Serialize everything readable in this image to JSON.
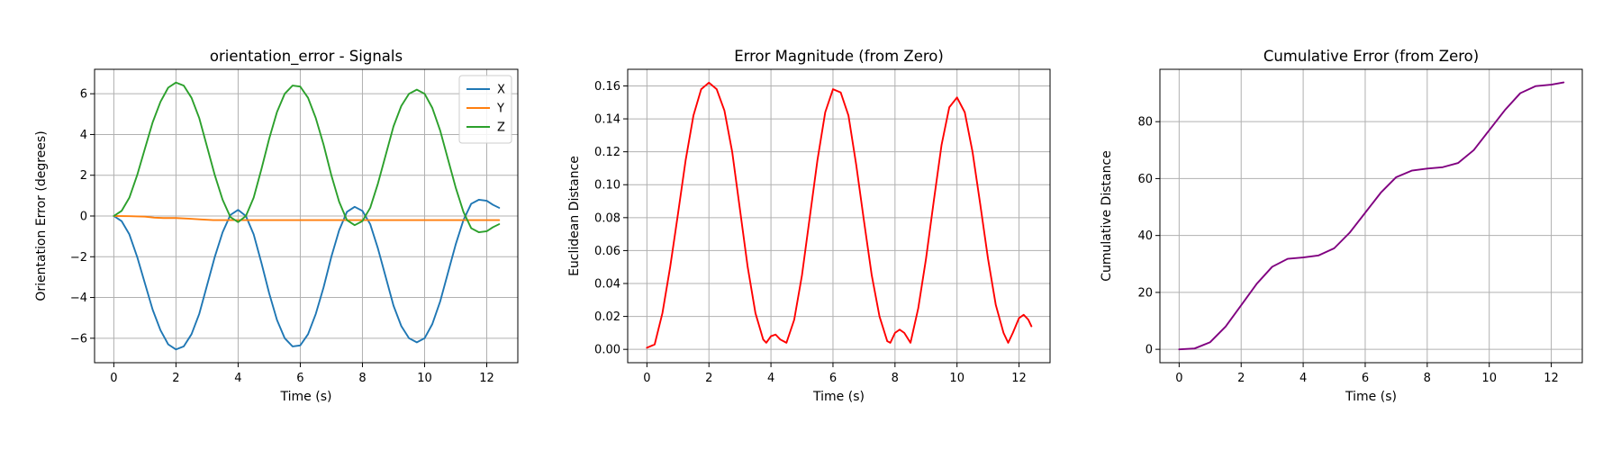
{
  "chart_data": [
    {
      "type": "line",
      "title": "orientation_error - Signals",
      "xlabel": "Time (s)",
      "ylabel": "Orientation Error (degrees)",
      "xlim": [
        -0.62,
        13.0
      ],
      "ylim": [
        -7.2,
        7.2
      ],
      "xticks": [
        0,
        2,
        4,
        6,
        8,
        10,
        12
      ],
      "yticks": [
        -6,
        -4,
        -2,
        0,
        2,
        4,
        6
      ],
      "ytick_labels": [
        "−6",
        "−4",
        "−2",
        "0",
        "2",
        "4",
        "6"
      ],
      "grid": true,
      "legend": "top-right",
      "series": [
        {
          "name": "X",
          "color": "#1f77b4",
          "x": [
            0,
            0.25,
            0.5,
            0.75,
            1.0,
            1.25,
            1.5,
            1.75,
            2.0,
            2.25,
            2.5,
            2.75,
            3.0,
            3.25,
            3.5,
            3.75,
            4.0,
            4.25,
            4.5,
            4.75,
            5.0,
            5.25,
            5.5,
            5.75,
            6.0,
            6.25,
            6.5,
            6.75,
            7.0,
            7.25,
            7.5,
            7.75,
            8.0,
            8.25,
            8.5,
            8.75,
            9.0,
            9.25,
            9.5,
            9.75,
            10.0,
            10.25,
            10.5,
            10.75,
            11.0,
            11.25,
            11.5,
            11.75,
            12.0,
            12.2,
            12.4
          ],
          "values": [
            0.0,
            -0.25,
            -0.9,
            -2.0,
            -3.3,
            -4.6,
            -5.6,
            -6.3,
            -6.55,
            -6.4,
            -5.8,
            -4.8,
            -3.4,
            -2.0,
            -0.8,
            0.05,
            0.3,
            0.0,
            -0.9,
            -2.3,
            -3.8,
            -5.1,
            -6.0,
            -6.4,
            -6.35,
            -5.8,
            -4.8,
            -3.5,
            -2.0,
            -0.7,
            0.2,
            0.45,
            0.25,
            -0.4,
            -1.6,
            -3.0,
            -4.4,
            -5.4,
            -6.0,
            -6.2,
            -6.0,
            -5.3,
            -4.2,
            -2.8,
            -1.4,
            -0.2,
            0.6,
            0.8,
            0.75,
            0.55,
            0.4
          ]
        },
        {
          "name": "Y",
          "color": "#ff7f0e",
          "x": [
            0,
            0.5,
            1.0,
            1.3,
            1.6,
            2.0,
            2.4,
            2.8,
            3.2,
            4.0,
            6.0,
            8.0,
            10.0,
            12.0,
            12.4
          ],
          "values": [
            0.0,
            -0.01,
            -0.03,
            -0.08,
            -0.1,
            -0.1,
            -0.13,
            -0.17,
            -0.2,
            -0.2,
            -0.2,
            -0.2,
            -0.2,
            -0.2,
            -0.2
          ]
        },
        {
          "name": "Z",
          "color": "#2ca02c",
          "x": [
            0,
            0.25,
            0.5,
            0.75,
            1.0,
            1.25,
            1.5,
            1.75,
            2.0,
            2.25,
            2.5,
            2.75,
            3.0,
            3.25,
            3.5,
            3.75,
            4.0,
            4.25,
            4.5,
            4.75,
            5.0,
            5.25,
            5.5,
            5.75,
            6.0,
            6.25,
            6.5,
            6.75,
            7.0,
            7.25,
            7.5,
            7.75,
            8.0,
            8.25,
            8.5,
            8.75,
            9.0,
            9.25,
            9.5,
            9.75,
            10.0,
            10.25,
            10.5,
            10.75,
            11.0,
            11.25,
            11.5,
            11.75,
            12.0,
            12.2,
            12.4
          ],
          "values": [
            0.0,
            0.25,
            0.9,
            2.0,
            3.3,
            4.6,
            5.6,
            6.3,
            6.55,
            6.4,
            5.8,
            4.8,
            3.4,
            2.0,
            0.8,
            -0.05,
            -0.3,
            0.0,
            0.9,
            2.3,
            3.8,
            5.1,
            6.0,
            6.4,
            6.35,
            5.8,
            4.8,
            3.5,
            2.0,
            0.7,
            -0.2,
            -0.45,
            -0.25,
            0.4,
            1.6,
            3.0,
            4.4,
            5.4,
            6.0,
            6.2,
            6.0,
            5.3,
            4.2,
            2.8,
            1.4,
            0.2,
            -0.6,
            -0.8,
            -0.75,
            -0.55,
            -0.4
          ]
        }
      ]
    },
    {
      "type": "line",
      "title": "Error Magnitude (from Zero)",
      "xlabel": "Time (s)",
      "ylabel": "Euclidean Distance",
      "xlim": [
        -0.62,
        13.0
      ],
      "ylim": [
        -0.0081,
        0.1701
      ],
      "xticks": [
        0,
        2,
        4,
        6,
        8,
        10,
        12
      ],
      "yticks": [
        0.0,
        0.02,
        0.04,
        0.06,
        0.08,
        0.1,
        0.12,
        0.14,
        0.16
      ],
      "ytick_labels": [
        "0.00",
        "0.02",
        "0.04",
        "0.06",
        "0.08",
        "0.10",
        "0.12",
        "0.14",
        "0.16"
      ],
      "grid": true,
      "series": [
        {
          "color": "#ff0000",
          "x": [
            0,
            0.25,
            0.5,
            0.75,
            1.0,
            1.25,
            1.5,
            1.75,
            2.0,
            2.25,
            2.5,
            2.75,
            3.0,
            3.25,
            3.5,
            3.75,
            3.85,
            4.0,
            4.15,
            4.3,
            4.5,
            4.75,
            5.0,
            5.25,
            5.5,
            5.75,
            6.0,
            6.25,
            6.5,
            6.75,
            7.0,
            7.25,
            7.5,
            7.75,
            7.85,
            8.0,
            8.15,
            8.3,
            8.5,
            8.75,
            9.0,
            9.25,
            9.5,
            9.75,
            10.0,
            10.25,
            10.5,
            10.75,
            11.0,
            11.25,
            11.5,
            11.65,
            11.8,
            12.0,
            12.15,
            12.3,
            12.4
          ],
          "values": [
            0.001,
            0.003,
            0.022,
            0.05,
            0.082,
            0.115,
            0.142,
            0.158,
            0.162,
            0.158,
            0.145,
            0.12,
            0.085,
            0.05,
            0.022,
            0.006,
            0.004,
            0.008,
            0.009,
            0.006,
            0.004,
            0.018,
            0.045,
            0.08,
            0.115,
            0.144,
            0.158,
            0.156,
            0.142,
            0.112,
            0.078,
            0.045,
            0.02,
            0.005,
            0.004,
            0.01,
            0.012,
            0.01,
            0.004,
            0.025,
            0.055,
            0.09,
            0.124,
            0.147,
            0.153,
            0.144,
            0.12,
            0.088,
            0.055,
            0.027,
            0.01,
            0.004,
            0.01,
            0.019,
            0.021,
            0.018,
            0.014
          ]
        }
      ]
    },
    {
      "type": "line",
      "title": "Cumulative Error (from Zero)",
      "xlabel": "Time (s)",
      "ylabel": "Cumulative Distance",
      "xlim": [
        -0.62,
        13.0
      ],
      "ylim": [
        -4.7,
        98.4
      ],
      "xticks": [
        0,
        2,
        4,
        6,
        8,
        10,
        12
      ],
      "yticks": [
        0,
        20,
        40,
        60,
        80
      ],
      "ytick_labels": [
        "0",
        "20",
        "40",
        "60",
        "80"
      ],
      "grid": true,
      "series": [
        {
          "color": "#800080",
          "x": [
            0,
            0.5,
            1.0,
            1.5,
            2.0,
            2.5,
            3.0,
            3.5,
            4.0,
            4.5,
            5.0,
            5.5,
            6.0,
            6.5,
            7.0,
            7.5,
            8.0,
            8.5,
            9.0,
            9.5,
            10.0,
            10.5,
            11.0,
            11.5,
            12.0,
            12.4
          ],
          "values": [
            0,
            0.3,
            2.5,
            8.0,
            15.5,
            23.0,
            29.0,
            31.8,
            32.3,
            33.0,
            35.5,
            41.0,
            48.0,
            55.0,
            60.5,
            62.8,
            63.5,
            64.0,
            65.5,
            70.0,
            77.0,
            84.0,
            90.0,
            92.5,
            93.0,
            93.8
          ]
        }
      ]
    }
  ]
}
